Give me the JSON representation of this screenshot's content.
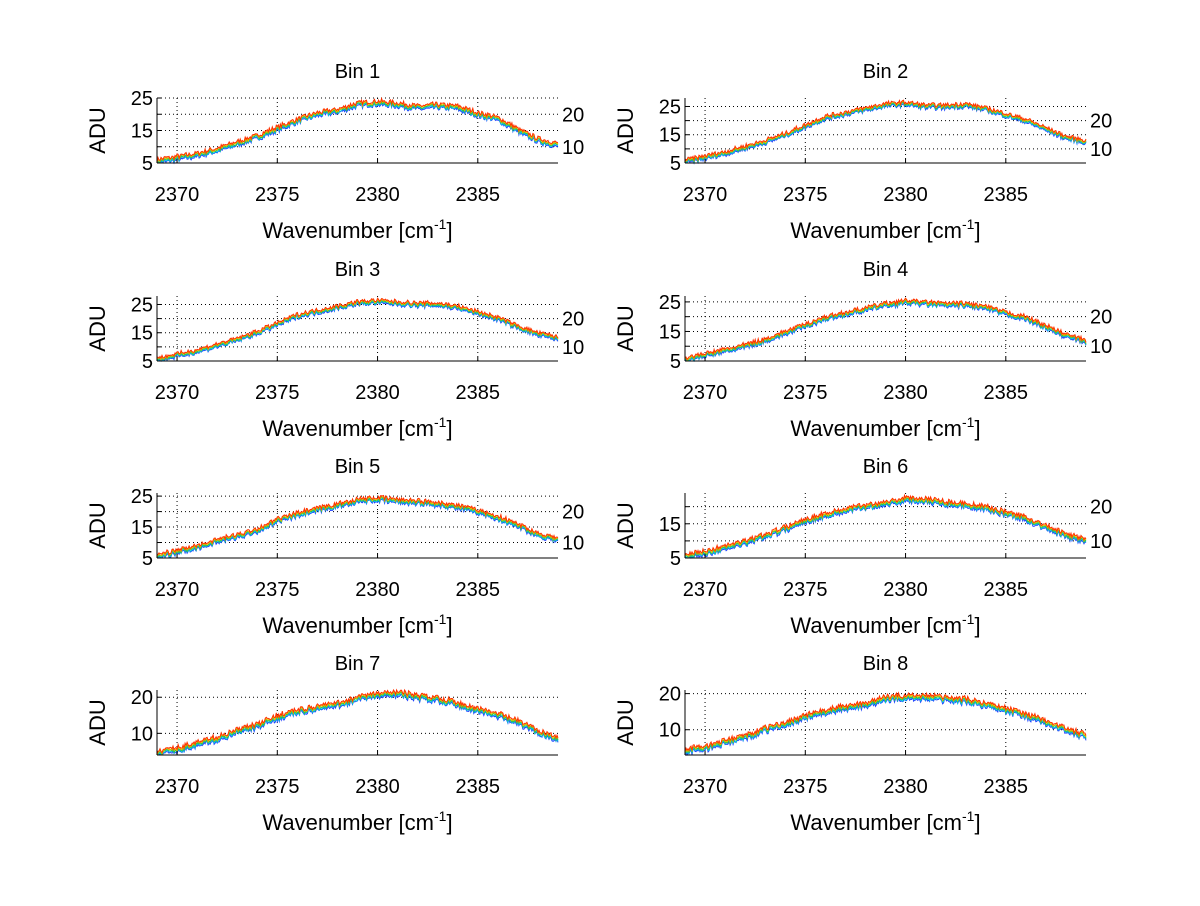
{
  "chart_data": {
    "type": "line",
    "layout": "4x2 subplots",
    "xlabel": "Wavenumber [cm",
    "xlabel_superscript": "-1",
    "xlabel_close": "]",
    "ylabel": "ADU",
    "xlim": [
      2369,
      2389
    ],
    "xticks": [
      2370,
      2375,
      2380,
      2385
    ],
    "x": [
      2369,
      2370,
      2371,
      2372,
      2373,
      2374,
      2375,
      2376,
      2377,
      2378,
      2379,
      2380,
      2381,
      2382,
      2383,
      2384,
      2385,
      2386,
      2387,
      2388,
      2389
    ],
    "grid": true,
    "series_colors": [
      "#1f3fff",
      "#00c8e0",
      "#30c040",
      "#e8c000",
      "#ff3000"
    ],
    "series_offsets": [
      -0.6,
      -0.3,
      0,
      0.3,
      0.6
    ],
    "subplots": [
      {
        "title": "Bin 1",
        "ylim": [
          5,
          25
        ],
        "yticks": [
          5,
          10,
          15,
          20,
          25
        ],
        "values": [
          5.5,
          6.5,
          7.5,
          9,
          11,
          13,
          15.5,
          18,
          20,
          21,
          23,
          23.5,
          23,
          22,
          22.5,
          22,
          20,
          18.5,
          15,
          12,
          10.5
        ]
      },
      {
        "title": "Bin 2",
        "ylim": [
          5,
          28
        ],
        "yticks": [
          5,
          10,
          15,
          20,
          25
        ],
        "values": [
          5.5,
          7,
          8.5,
          10.5,
          12.5,
          15,
          18,
          21,
          22.5,
          24,
          25.5,
          26,
          25,
          25,
          25.5,
          24,
          22,
          20,
          17,
          14,
          12.5
        ]
      },
      {
        "title": "Bin 3",
        "ylim": [
          5,
          28
        ],
        "yticks": [
          5,
          10,
          15,
          20,
          25
        ],
        "values": [
          5.5,
          7,
          8.5,
          10.5,
          12.5,
          15,
          18,
          21,
          22.5,
          24,
          25.5,
          26,
          25.5,
          25,
          25,
          24,
          22,
          20,
          17,
          14.5,
          13
        ]
      },
      {
        "title": "Bin 4",
        "ylim": [
          5,
          27
        ],
        "yticks": [
          5,
          10,
          15,
          20,
          25
        ],
        "values": [
          5.5,
          7,
          8.5,
          10,
          12,
          14.5,
          17,
          19.5,
          21,
          22.5,
          24,
          25,
          24.5,
          24,
          24,
          23,
          21,
          19.5,
          16.5,
          13.5,
          11.5
        ]
      },
      {
        "title": "Bin 5",
        "ylim": [
          5,
          26
        ],
        "yticks": [
          5,
          10,
          15,
          20,
          25
        ],
        "values": [
          5.5,
          7,
          8.5,
          10.5,
          12,
          14,
          17,
          19,
          20.5,
          22,
          23.5,
          24,
          23.5,
          23,
          22.5,
          21.5,
          20,
          18,
          15.5,
          12.5,
          11
        ]
      },
      {
        "title": "Bin 6",
        "ylim": [
          5,
          24
        ],
        "yticks": [
          5,
          10,
          15,
          20
        ],
        "values": [
          5.5,
          6.5,
          8,
          9.5,
          11.5,
          13.5,
          16,
          17.5,
          19,
          20,
          21,
          22,
          22,
          21,
          20.5,
          19.5,
          18,
          16.5,
          14,
          11.5,
          10
        ]
      },
      {
        "title": "Bin 7",
        "ylim": [
          4,
          22
        ],
        "yticks": [
          10,
          20
        ],
        "values": [
          4.5,
          5.5,
          7,
          8.5,
          10.5,
          12,
          14.5,
          16,
          17,
          18,
          19.5,
          20.5,
          21,
          20,
          19.5,
          18,
          16.5,
          15,
          13,
          10.5,
          8.5
        ]
      },
      {
        "title": "Bin 8",
        "ylim": [
          3,
          21
        ],
        "yticks": [
          10,
          20
        ],
        "values": [
          4,
          5,
          6.5,
          8,
          10,
          11.5,
          13.5,
          15,
          16,
          17,
          18.5,
          19,
          19,
          18.5,
          18,
          17,
          15.5,
          14,
          12,
          10,
          8
        ]
      }
    ]
  }
}
